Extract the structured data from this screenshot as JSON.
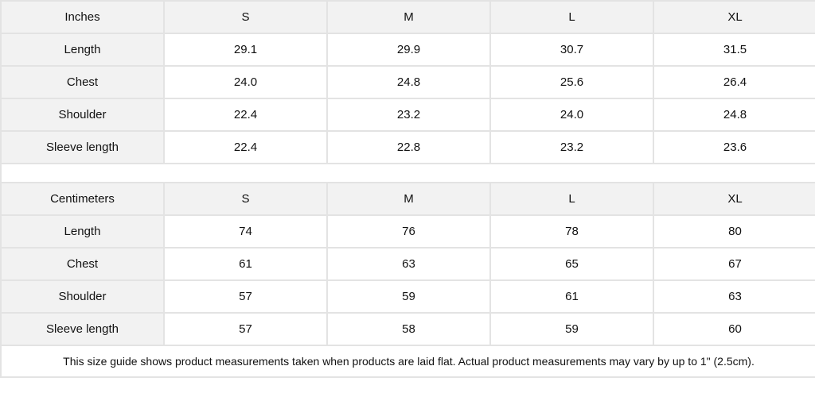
{
  "inches": {
    "header": [
      "Inches",
      "S",
      "M",
      "L",
      "XL"
    ],
    "rows": [
      [
        "Length",
        "29.1",
        "29.9",
        "30.7",
        "31.5"
      ],
      [
        "Chest",
        "24.0",
        "24.8",
        "25.6",
        "26.4"
      ],
      [
        "Shoulder",
        "22.4",
        "23.2",
        "24.0",
        "24.8"
      ],
      [
        "Sleeve length",
        "22.4",
        "22.8",
        "23.2",
        "23.6"
      ]
    ]
  },
  "centimeters": {
    "header": [
      "Centimeters",
      "S",
      "M",
      "L",
      "XL"
    ],
    "rows": [
      [
        "Length",
        "74",
        "76",
        "78",
        "80"
      ],
      [
        "Chest",
        "61",
        "63",
        "65",
        "67"
      ],
      [
        "Shoulder",
        "57",
        "59",
        "61",
        "63"
      ],
      [
        "Sleeve length",
        "57",
        "58",
        "59",
        "60"
      ]
    ]
  },
  "footnote": "This size guide shows product measurements taken when products are laid flat.  Actual product measurements may vary by up to 1\" (2.5cm)."
}
